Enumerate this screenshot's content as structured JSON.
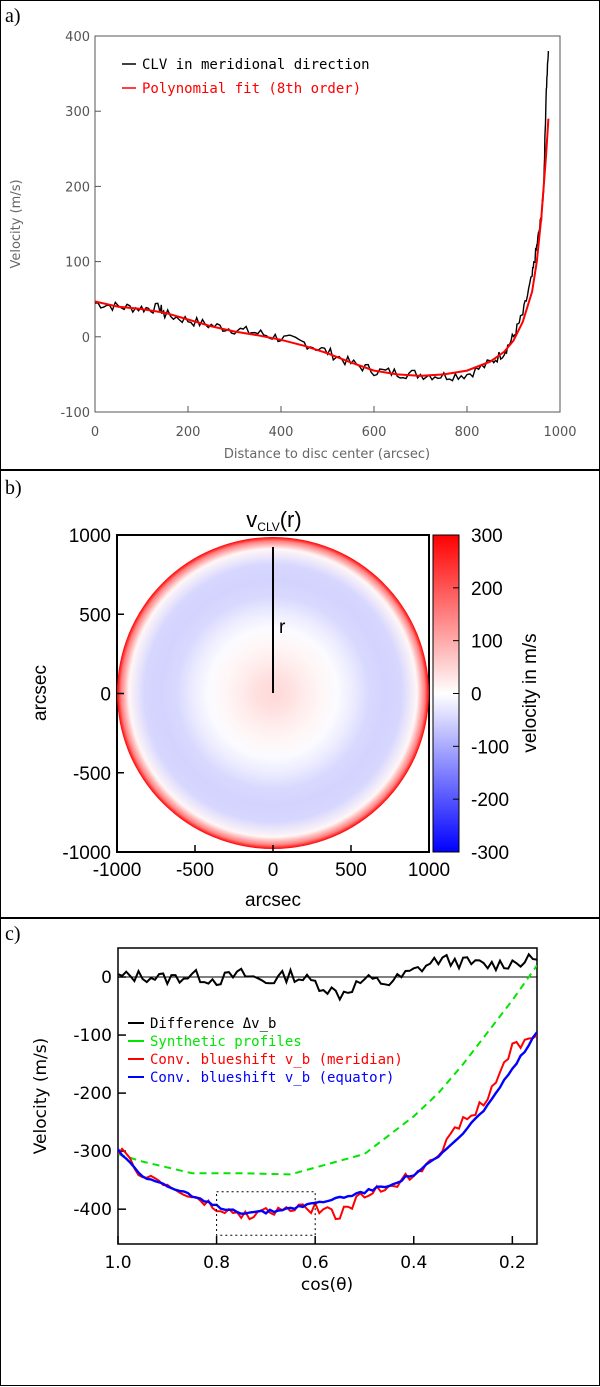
{
  "panels": {
    "a": {
      "letter": "a)"
    },
    "b": {
      "letter": "b)"
    },
    "c": {
      "letter": "c)"
    }
  },
  "chart_data": [
    {
      "type": "line",
      "title": "",
      "xlabel": "Distance to disc center (arcsec)",
      "ylabel": "Velocity (m/s)",
      "xlim": [
        0,
        1000
      ],
      "ylim": [
        -100,
        400
      ],
      "xticks": [
        0,
        200,
        400,
        600,
        800,
        1000
      ],
      "yticks": [
        -100,
        0,
        100,
        200,
        300,
        400
      ],
      "legend": [
        "CLV in meridional direction",
        "Polynomial fit (8th order)"
      ],
      "series": [
        {
          "name": "CLV in meridional direction",
          "color": "#000000",
          "x": [
            0,
            50,
            100,
            140,
            150,
            200,
            250,
            300,
            350,
            400,
            450,
            500,
            550,
            600,
            650,
            700,
            750,
            800,
            850,
            880,
            900,
            920,
            940,
            950,
            960,
            965,
            970,
            975
          ],
          "y": [
            45,
            40,
            38,
            38,
            30,
            22,
            15,
            10,
            5,
            -2,
            -8,
            -20,
            -35,
            -45,
            -48,
            -50,
            -52,
            -50,
            -35,
            -20,
            0,
            30,
            80,
            120,
            160,
            200,
            320,
            380
          ]
        },
        {
          "name": "Polynomial fit (8th order)",
          "color": "#ff0000",
          "x": [
            0,
            50,
            100,
            150,
            200,
            250,
            300,
            350,
            400,
            450,
            500,
            550,
            600,
            650,
            700,
            750,
            800,
            850,
            880,
            900,
            920,
            940,
            950,
            960,
            970,
            975
          ],
          "y": [
            47,
            40,
            37,
            32,
            23,
            14,
            7,
            2,
            -4,
            -12,
            -22,
            -34,
            -45,
            -50,
            -52,
            -50,
            -45,
            -33,
            -20,
            -5,
            20,
            60,
            100,
            160,
            240,
            290
          ]
        }
      ]
    },
    {
      "type": "heatmap",
      "title": "v_CLV(r)",
      "title_main": "v",
      "title_sub": "CLV",
      "title_tail": "(r)",
      "xlabel": "arcsec",
      "ylabel": "arcsec",
      "xlim": [
        -1000,
        1000
      ],
      "ylim": [
        -1000,
        1000
      ],
      "xticks": [
        -1000,
        -500,
        0,
        500,
        1000
      ],
      "yticks": [
        -1000,
        -500,
        0,
        500,
        1000
      ],
      "radius_label": "r",
      "colorbar": {
        "label": "velocity in m/s",
        "range": [
          -300,
          300
        ],
        "ticks": [
          300,
          200,
          100,
          0,
          -100,
          -200,
          -300
        ],
        "low_color": "#0000ff",
        "mid_color": "#ffffff",
        "high_color": "#ff0000"
      },
      "radial_profile": {
        "r": [
          0,
          100,
          200,
          300,
          400,
          500,
          600,
          700,
          800,
          900,
          950,
          975
        ],
        "v": [
          45,
          38,
          22,
          10,
          -5,
          -22,
          -45,
          -52,
          -48,
          10,
          150,
          300
        ]
      }
    },
    {
      "type": "line",
      "title": "",
      "xlabel": "cos(θ)",
      "ylabel": "Velocity (m/s)",
      "xlim": [
        1.0,
        0.15
      ],
      "ylim": [
        -460,
        50
      ],
      "xticks": [
        1.0,
        0.8,
        0.6,
        0.4,
        0.2
      ],
      "xtick_labels": [
        "1.0",
        "0.8",
        "0.6",
        "0.4",
        "0.2"
      ],
      "yticks": [
        0,
        -100,
        -200,
        -300,
        -400
      ],
      "zero_line": 0,
      "box": {
        "x": [
          0.8,
          0.6
        ],
        "y": [
          -445,
          -370
        ]
      },
      "series": [
        {
          "name": "Difference Δv_b",
          "color": "#000000",
          "style": "solid",
          "x": [
            1.0,
            0.95,
            0.9,
            0.85,
            0.8,
            0.75,
            0.7,
            0.65,
            0.6,
            0.55,
            0.5,
            0.45,
            0.4,
            0.35,
            0.3,
            0.25,
            0.2,
            0.15
          ],
          "y": [
            0,
            2,
            -3,
            3,
            -5,
            5,
            -8,
            4,
            -10,
            -30,
            -5,
            -10,
            10,
            30,
            25,
            20,
            25,
            30
          ]
        },
        {
          "name": "Synthetic profiles",
          "color": "#00e600",
          "style": "dashed",
          "x": [
            1.0,
            0.95,
            0.85,
            0.75,
            0.65,
            0.5,
            0.4,
            0.35,
            0.3,
            0.25,
            0.2,
            0.15
          ],
          "y": [
            -305,
            -318,
            -338,
            -338,
            -340,
            -305,
            -240,
            -200,
            -150,
            -95,
            -40,
            20
          ]
        },
        {
          "name": "Conv. blueshift v_b (meridian)",
          "color": "#ff0000",
          "style": "solid",
          "x": [
            1.0,
            0.95,
            0.9,
            0.85,
            0.8,
            0.75,
            0.7,
            0.65,
            0.6,
            0.55,
            0.5,
            0.45,
            0.4,
            0.35,
            0.3,
            0.25,
            0.2,
            0.15
          ],
          "y": [
            -298,
            -340,
            -360,
            -380,
            -400,
            -412,
            -405,
            -400,
            -398,
            -410,
            -375,
            -360,
            -340,
            -300,
            -250,
            -210,
            -120,
            -100
          ]
        },
        {
          "name": "Conv. blueshift v_b (equator)",
          "color": "#0000ff",
          "style": "solid",
          "x": [
            1.0,
            0.95,
            0.9,
            0.85,
            0.8,
            0.75,
            0.7,
            0.65,
            0.6,
            0.55,
            0.5,
            0.45,
            0.4,
            0.35,
            0.3,
            0.25,
            0.2,
            0.15
          ],
          "y": [
            -298,
            -342,
            -360,
            -378,
            -395,
            -405,
            -405,
            -398,
            -390,
            -380,
            -370,
            -358,
            -340,
            -310,
            -270,
            -220,
            -160,
            -95
          ]
        }
      ]
    }
  ]
}
